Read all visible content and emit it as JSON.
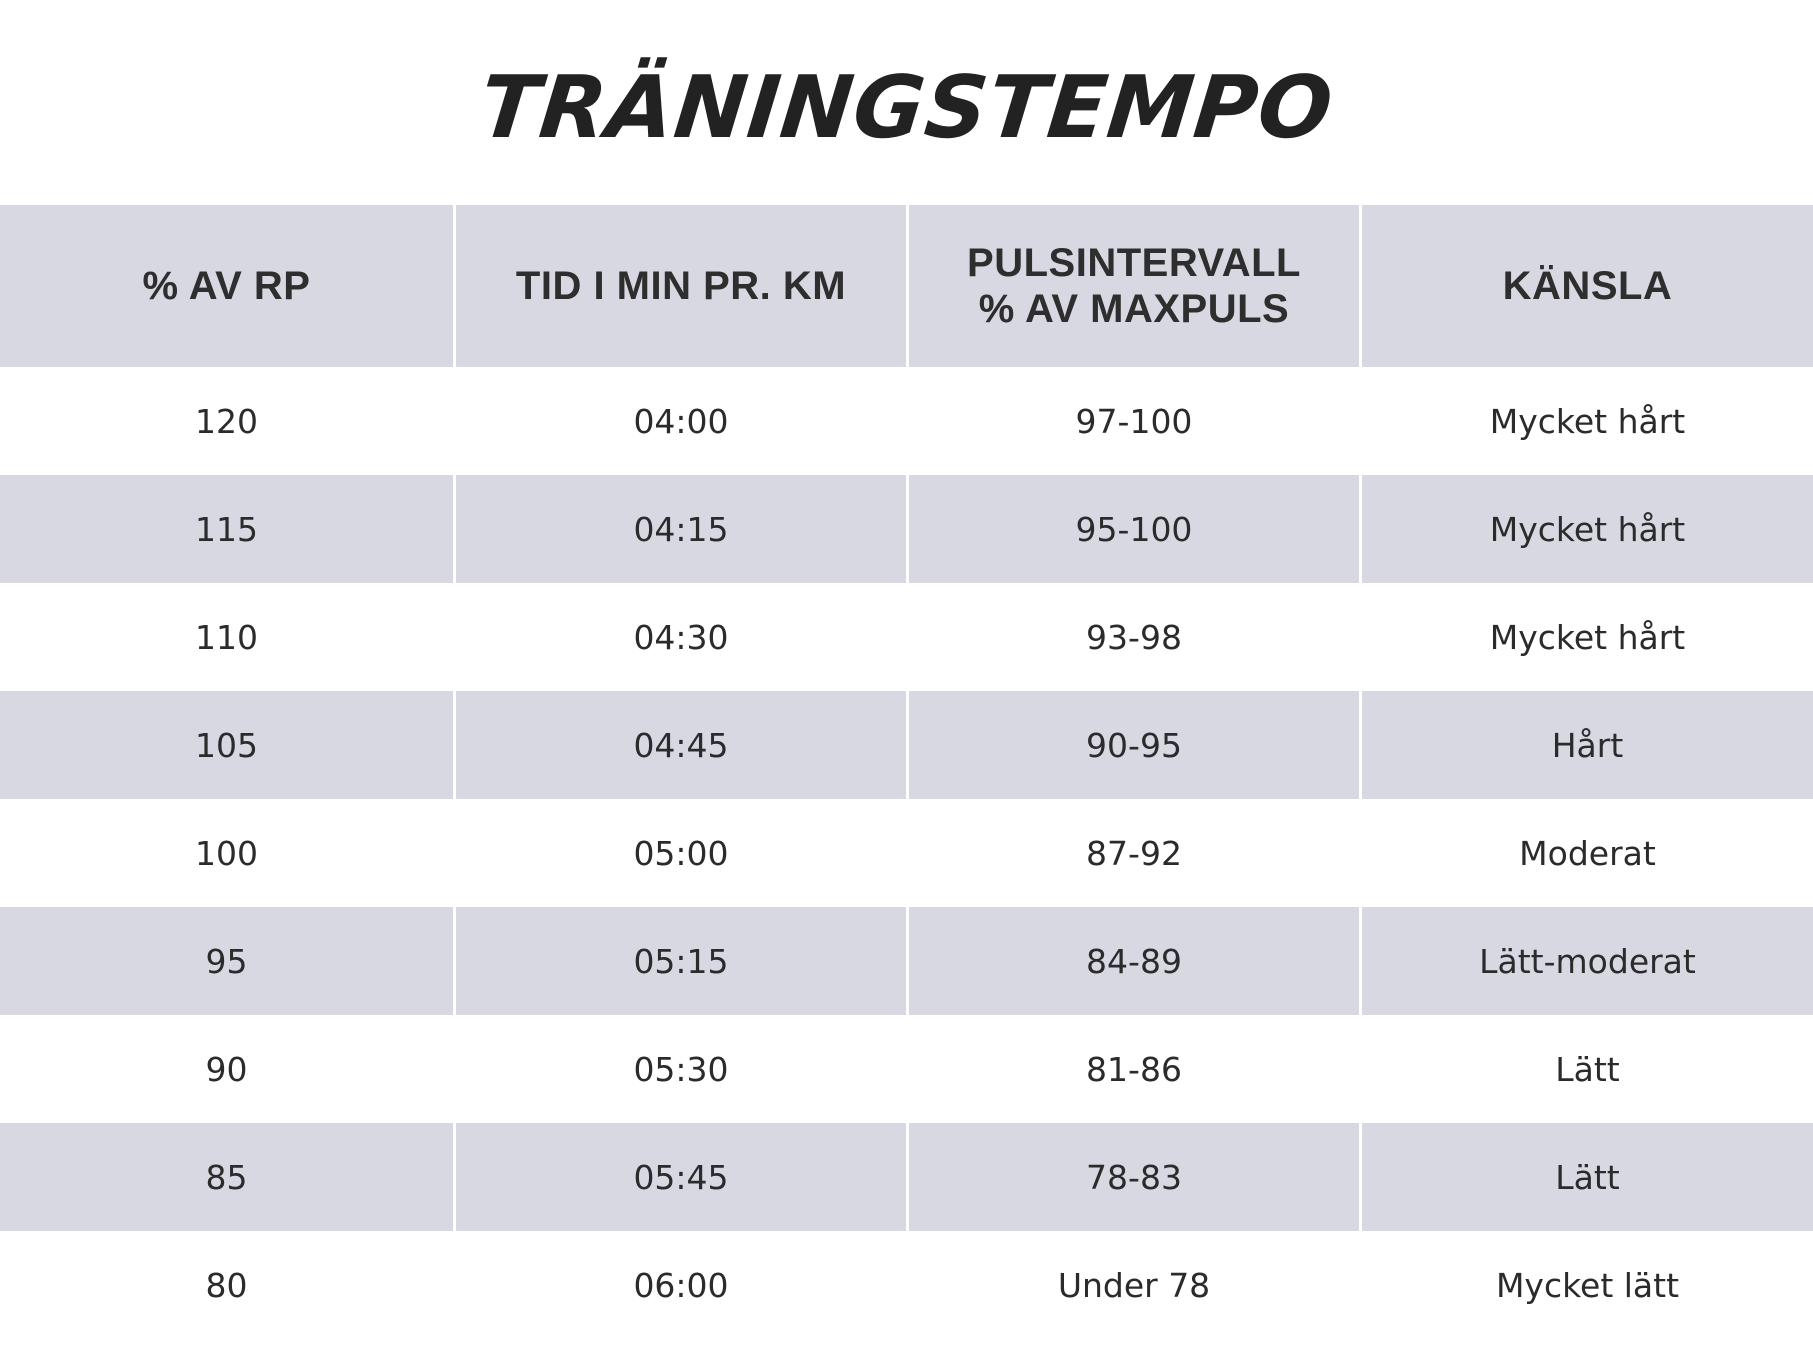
{
  "title": "TRÄNINGSTEMPO",
  "table": {
    "headers": [
      "% AV RP",
      "TID I MIN PR. KM",
      "PULSINTERVALL\n% AV MAXPULS",
      "KÄNSLA"
    ],
    "rows": [
      [
        "120",
        "04:00",
        "97-100",
        "Mycket hårt"
      ],
      [
        "115",
        "04:15",
        "95-100",
        "Mycket hårt"
      ],
      [
        "110",
        "04:30",
        "93-98",
        "Mycket hårt"
      ],
      [
        "105",
        "04:45",
        "90-95",
        "Hårt"
      ],
      [
        "100",
        "05:00",
        "87-92",
        "Moderat"
      ],
      [
        "95",
        "05:15",
        "84-89",
        "Lätt-moderat"
      ],
      [
        "90",
        "05:30",
        "81-86",
        "Lätt"
      ],
      [
        "85",
        "05:45",
        "78-83",
        "Lätt"
      ],
      [
        "80",
        "06:00",
        "Under 78",
        "Mycket lätt"
      ]
    ]
  },
  "colors": {
    "shaded_row": "#d8d8e3",
    "text": "#2b2b2b",
    "title": "#222222"
  }
}
